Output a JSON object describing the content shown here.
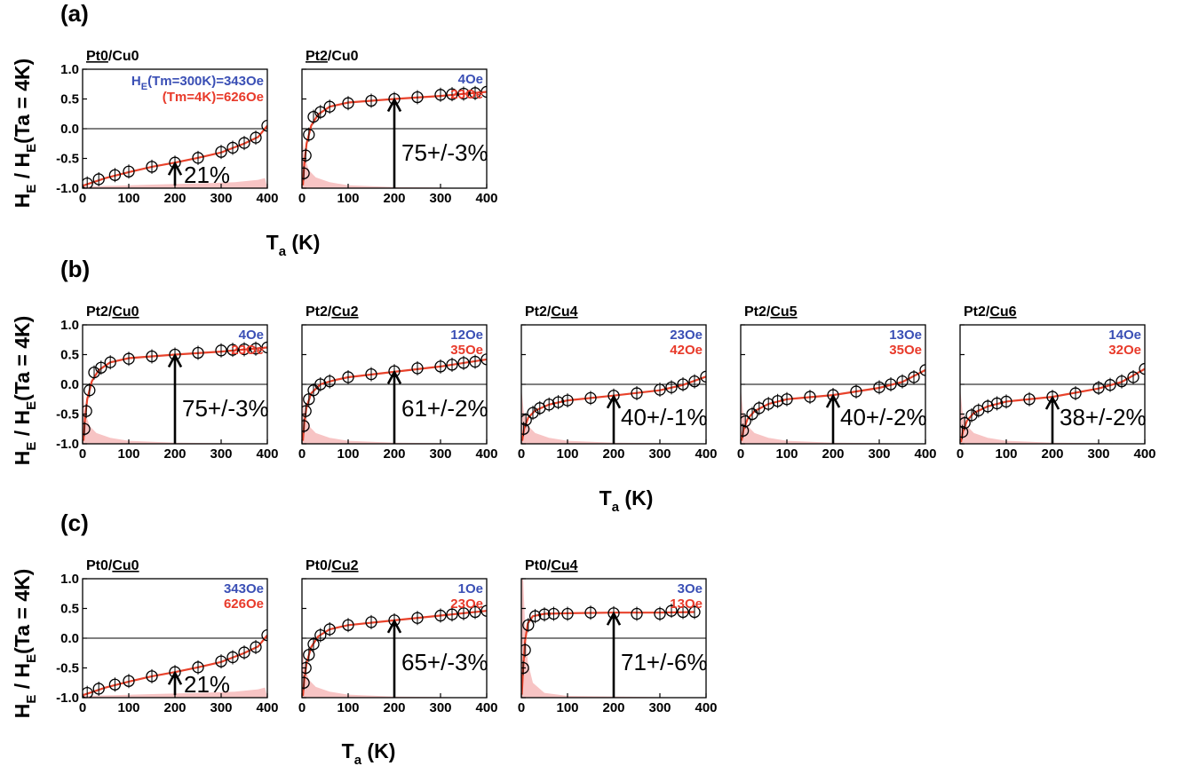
{
  "figure": {
    "y_label_main": "H",
    "y_label_sub": "E",
    "y_label_mid": " / H",
    "y_label_sub2": "E",
    "y_label_tail": "(Ta = 4K)",
    "x_label_main": "T",
    "x_label_sub": "a",
    "x_label_tail": " (K)",
    "colors": {
      "fit": "#e8422b",
      "shade": "#f7c4c4",
      "blue": "#3a4fb5",
      "red": "#e83a2a"
    }
  },
  "chart_data": [
    {
      "type": "scatter",
      "row": "(a)",
      "title_underlined": "Pt0",
      "title_rest": "/Cu0",
      "underline_first": true,
      "xlim": [
        0,
        400
      ],
      "ylim": [
        -1.0,
        1.0
      ],
      "xticks": [
        "0",
        "100",
        "200",
        "300",
        "400"
      ],
      "yticks": [
        "-1.0",
        "-0.5",
        "0.0",
        "0.5",
        "1.0"
      ],
      "x": [
        10,
        35,
        70,
        100,
        150,
        200,
        250,
        300,
        325,
        350,
        375,
        400
      ],
      "y": [
        -0.92,
        -0.85,
        -0.78,
        -0.72,
        -0.64,
        -0.57,
        -0.49,
        -0.39,
        -0.32,
        -0.24,
        -0.15,
        0.05
      ],
      "fit": [
        [
          0,
          -0.96
        ],
        [
          50,
          -0.83
        ],
        [
          100,
          -0.73
        ],
        [
          150,
          -0.64
        ],
        [
          200,
          -0.57
        ],
        [
          250,
          -0.49
        ],
        [
          300,
          -0.4
        ],
        [
          350,
          -0.25
        ],
        [
          380,
          -0.14
        ],
        [
          400,
          0.05
        ]
      ],
      "shade_kind": "tail",
      "arrow_x": 200,
      "arrow_y": -0.57,
      "percent": "21%",
      "label_kind": "small",
      "note_blue": "H_E(Tm=300K)=343Oe",
      "note_red": "(Tm=4K)=626Oe",
      "note_kind": "long"
    },
    {
      "type": "scatter",
      "row": "(a)",
      "title_underlined": "Pt2",
      "title_rest": "/Cu0",
      "underline_first": true,
      "xlim": [
        0,
        400
      ],
      "ylim": [
        -1.0,
        1.0
      ],
      "xticks": [
        "0",
        "100",
        "200",
        "300",
        "400"
      ],
      "yticks": [],
      "x": [
        4,
        8,
        15,
        25,
        40,
        60,
        100,
        150,
        200,
        250,
        300,
        325,
        350,
        375,
        400
      ],
      "y": [
        -0.75,
        -0.45,
        -0.1,
        0.2,
        0.28,
        0.37,
        0.43,
        0.47,
        0.5,
        0.53,
        0.57,
        0.58,
        0.59,
        0.6,
        0.62
      ],
      "fit": [
        [
          2,
          -0.95
        ],
        [
          5,
          -0.6
        ],
        [
          10,
          -0.25
        ],
        [
          20,
          0.05
        ],
        [
          35,
          0.24
        ],
        [
          60,
          0.37
        ],
        [
          100,
          0.44
        ],
        [
          150,
          0.47
        ],
        [
          200,
          0.5
        ],
        [
          300,
          0.55
        ],
        [
          400,
          0.62
        ]
      ],
      "shade_kind": "peak",
      "arrow_x": 200,
      "arrow_y": 0.5,
      "percent": "75+/-3%",
      "label_kind": "big",
      "note_blue": "4Oe",
      "note_red": "23Oe",
      "note_kind": "short"
    },
    {
      "type": "scatter",
      "row": "(b)",
      "title_underlined": "Cu0",
      "title_rest": "Pt2/",
      "underline_first": false,
      "xlim": [
        0,
        400
      ],
      "ylim": [
        -1.0,
        1.0
      ],
      "xticks": [
        "0",
        "100",
        "200",
        "300",
        "400"
      ],
      "yticks": [
        "-1.0",
        "-0.5",
        "0.0",
        "0.5",
        "1.0"
      ],
      "x": [
        4,
        8,
        15,
        25,
        40,
        60,
        100,
        150,
        200,
        250,
        300,
        325,
        350,
        375,
        400
      ],
      "y": [
        -0.75,
        -0.45,
        -0.1,
        0.2,
        0.28,
        0.37,
        0.43,
        0.47,
        0.5,
        0.53,
        0.57,
        0.58,
        0.59,
        0.6,
        0.62
      ],
      "fit": [
        [
          2,
          -0.95
        ],
        [
          5,
          -0.6
        ],
        [
          10,
          -0.25
        ],
        [
          20,
          0.05
        ],
        [
          35,
          0.24
        ],
        [
          60,
          0.37
        ],
        [
          100,
          0.44
        ],
        [
          150,
          0.47
        ],
        [
          200,
          0.5
        ],
        [
          300,
          0.55
        ],
        [
          400,
          0.62
        ]
      ],
      "shade_kind": "peak",
      "arrow_x": 200,
      "arrow_y": 0.5,
      "percent": "75+/-3%",
      "label_kind": "big",
      "note_blue": "4Oe",
      "note_red": "23Oe",
      "note_kind": "short"
    },
    {
      "type": "scatter",
      "row": "(b)",
      "title_underlined": "Cu2",
      "title_rest": "Pt2/",
      "underline_first": false,
      "xlim": [
        0,
        400
      ],
      "ylim": [
        -1.0,
        1.0
      ],
      "xticks": [
        "0",
        "100",
        "200",
        "300",
        "400"
      ],
      "yticks": [],
      "x": [
        4,
        8,
        15,
        25,
        40,
        60,
        100,
        150,
        200,
        250,
        300,
        325,
        350,
        375,
        400
      ],
      "y": [
        -0.7,
        -0.45,
        -0.25,
        -0.1,
        0.0,
        0.05,
        0.12,
        0.17,
        0.22,
        0.27,
        0.3,
        0.33,
        0.36,
        0.38,
        0.42
      ],
      "fit": [
        [
          2,
          -0.95
        ],
        [
          5,
          -0.65
        ],
        [
          10,
          -0.38
        ],
        [
          20,
          -0.15
        ],
        [
          40,
          0.0
        ],
        [
          70,
          0.07
        ],
        [
          100,
          0.12
        ],
        [
          200,
          0.21
        ],
        [
          300,
          0.3
        ],
        [
          400,
          0.42
        ]
      ],
      "shade_kind": "peak",
      "arrow_x": 200,
      "arrow_y": 0.22,
      "percent": "61+/-2%",
      "label_kind": "big",
      "note_blue": "12Oe",
      "note_red": "35Oe",
      "note_kind": "short"
    },
    {
      "type": "scatter",
      "row": "(b)",
      "title_underlined": "Cu4",
      "title_rest": "Pt2/",
      "underline_first": false,
      "xlim": [
        0,
        400
      ],
      "ylim": [
        -1.0,
        1.0
      ],
      "xticks": [
        "0",
        "100",
        "200",
        "300",
        "400"
      ],
      "yticks": [],
      "x": [
        5,
        10,
        25,
        40,
        60,
        80,
        100,
        150,
        200,
        250,
        300,
        325,
        350,
        375,
        400
      ],
      "y": [
        -0.75,
        -0.6,
        -0.48,
        -0.4,
        -0.34,
        -0.3,
        -0.27,
        -0.23,
        -0.19,
        -0.15,
        -0.09,
        -0.05,
        0.0,
        0.05,
        0.13
      ],
      "fit": [
        [
          2,
          -0.95
        ],
        [
          6,
          -0.75
        ],
        [
          15,
          -0.56
        ],
        [
          30,
          -0.44
        ],
        [
          60,
          -0.34
        ],
        [
          100,
          -0.27
        ],
        [
          200,
          -0.19
        ],
        [
          300,
          -0.1
        ],
        [
          350,
          -0.01
        ],
        [
          400,
          0.13
        ]
      ],
      "shade_kind": "peak",
      "arrow_x": 200,
      "arrow_y": -0.19,
      "percent": "40+/-1%",
      "label_kind": "big",
      "note_blue": "23Oe",
      "note_red": "42Oe",
      "note_kind": "short"
    },
    {
      "type": "scatter",
      "row": "(b)",
      "title_underlined": "Cu5",
      "title_rest": "Pt2/",
      "underline_first": false,
      "xlim": [
        0,
        400
      ],
      "ylim": [
        -1.0,
        1.0
      ],
      "xticks": [
        "0",
        "100",
        "200",
        "300",
        "400"
      ],
      "yticks": [],
      "x": [
        5,
        10,
        25,
        40,
        60,
        80,
        100,
        150,
        200,
        250,
        300,
        325,
        350,
        375,
        400
      ],
      "y": [
        -0.78,
        -0.62,
        -0.5,
        -0.4,
        -0.33,
        -0.28,
        -0.25,
        -0.21,
        -0.18,
        -0.12,
        -0.05,
        0.0,
        0.05,
        0.12,
        0.24
      ],
      "fit": [
        [
          2,
          -0.95
        ],
        [
          6,
          -0.77
        ],
        [
          15,
          -0.58
        ],
        [
          30,
          -0.45
        ],
        [
          60,
          -0.33
        ],
        [
          100,
          -0.25
        ],
        [
          200,
          -0.18
        ],
        [
          300,
          -0.06
        ],
        [
          350,
          0.04
        ],
        [
          400,
          0.24
        ]
      ],
      "shade_kind": "peak",
      "arrow_x": 200,
      "arrow_y": -0.18,
      "percent": "40+/-2%",
      "label_kind": "big",
      "note_blue": "13Oe",
      "note_red": "35Oe",
      "note_kind": "short"
    },
    {
      "type": "scatter",
      "row": "(b)",
      "title_underlined": "Cu6",
      "title_rest": "Pt2/",
      "underline_first": false,
      "xlim": [
        0,
        400
      ],
      "ylim": [
        -1.0,
        1.0
      ],
      "xticks": [
        "0",
        "100",
        "200",
        "300",
        "400"
      ],
      "yticks": [],
      "x": [
        5,
        10,
        25,
        40,
        60,
        80,
        100,
        150,
        200,
        250,
        300,
        325,
        350,
        375,
        400
      ],
      "y": [
        -0.8,
        -0.65,
        -0.52,
        -0.44,
        -0.37,
        -0.32,
        -0.29,
        -0.25,
        -0.21,
        -0.15,
        -0.06,
        -0.01,
        0.05,
        0.12,
        0.26
      ],
      "fit": [
        [
          2,
          -0.97
        ],
        [
          6,
          -0.8
        ],
        [
          15,
          -0.61
        ],
        [
          30,
          -0.48
        ],
        [
          60,
          -0.37
        ],
        [
          100,
          -0.29
        ],
        [
          200,
          -0.21
        ],
        [
          300,
          -0.07
        ],
        [
          350,
          0.04
        ],
        [
          400,
          0.26
        ]
      ],
      "shade_kind": "peak",
      "arrow_x": 200,
      "arrow_y": -0.21,
      "percent": "38+/-2%",
      "label_kind": "big",
      "note_blue": "14Oe",
      "note_red": "32Oe",
      "note_kind": "short"
    },
    {
      "type": "scatter",
      "row": "(c)",
      "title_underlined": "Cu0",
      "title_rest": "Pt0/",
      "underline_first": false,
      "xlim": [
        0,
        400
      ],
      "ylim": [
        -1.0,
        1.0
      ],
      "xticks": [
        "0",
        "100",
        "200",
        "300",
        "400"
      ],
      "yticks": [
        "-1.0",
        "-0.5",
        "0.0",
        "0.5",
        "1.0"
      ],
      "x": [
        10,
        35,
        70,
        100,
        150,
        200,
        250,
        300,
        325,
        350,
        375,
        400
      ],
      "y": [
        -0.92,
        -0.85,
        -0.78,
        -0.72,
        -0.64,
        -0.57,
        -0.49,
        -0.39,
        -0.32,
        -0.24,
        -0.15,
        0.05
      ],
      "fit": [
        [
          0,
          -0.96
        ],
        [
          50,
          -0.83
        ],
        [
          100,
          -0.73
        ],
        [
          150,
          -0.64
        ],
        [
          200,
          -0.57
        ],
        [
          250,
          -0.49
        ],
        [
          300,
          -0.4
        ],
        [
          350,
          -0.25
        ],
        [
          380,
          -0.14
        ],
        [
          400,
          0.05
        ]
      ],
      "shade_kind": "tail",
      "arrow_x": 200,
      "arrow_y": -0.57,
      "percent": "21%",
      "label_kind": "small",
      "note_blue": "343Oe",
      "note_red": "626Oe",
      "note_kind": "short"
    },
    {
      "type": "scatter",
      "row": "(c)",
      "title_underlined": "Cu2",
      "title_rest": "Pt0/",
      "underline_first": false,
      "xlim": [
        0,
        400
      ],
      "ylim": [
        -1.0,
        1.0
      ],
      "xticks": [
        "0",
        "100",
        "200",
        "300",
        "400"
      ],
      "yticks": [],
      "x": [
        4,
        8,
        15,
        25,
        40,
        60,
        100,
        150,
        200,
        250,
        300,
        325,
        350,
        375,
        400
      ],
      "y": [
        -0.75,
        -0.5,
        -0.28,
        -0.1,
        0.05,
        0.15,
        0.22,
        0.27,
        0.3,
        0.34,
        0.38,
        0.4,
        0.42,
        0.44,
        0.46
      ],
      "fit": [
        [
          2,
          -0.97
        ],
        [
          5,
          -0.7
        ],
        [
          10,
          -0.42
        ],
        [
          20,
          -0.15
        ],
        [
          35,
          0.03
        ],
        [
          60,
          0.15
        ],
        [
          100,
          0.22
        ],
        [
          200,
          0.3
        ],
        [
          300,
          0.38
        ],
        [
          400,
          0.46
        ]
      ],
      "shade_kind": "peak",
      "arrow_x": 200,
      "arrow_y": 0.3,
      "percent": "65+/-3%",
      "label_kind": "big",
      "note_blue": "1Oe",
      "note_red": "23Oe",
      "note_kind": "short"
    },
    {
      "type": "scatter",
      "row": "(c)",
      "title_underlined": "Cu4",
      "title_rest": "Pt0/",
      "underline_first": false,
      "xlim": [
        0,
        400
      ],
      "ylim": [
        -1.0,
        1.0
      ],
      "xticks": [
        "0",
        "100",
        "200",
        "300",
        "400"
      ],
      "yticks": [],
      "x": [
        4,
        8,
        15,
        30,
        50,
        70,
        100,
        150,
        200,
        250,
        300,
        325,
        350,
        375
      ],
      "y": [
        -0.5,
        -0.2,
        0.22,
        0.37,
        0.4,
        0.41,
        0.41,
        0.43,
        0.42,
        0.41,
        0.41,
        0.46,
        0.44,
        0.44
      ],
      "fit": [
        [
          1,
          -0.95
        ],
        [
          4,
          -0.5
        ],
        [
          8,
          -0.05
        ],
        [
          14,
          0.25
        ],
        [
          25,
          0.37
        ],
        [
          50,
          0.41
        ],
        [
          100,
          0.42
        ],
        [
          200,
          0.43
        ],
        [
          300,
          0.43
        ],
        [
          375,
          0.44
        ]
      ],
      "shade_kind": "spike",
      "arrow_x": 200,
      "arrow_y": 0.43,
      "percent": "71+/-6%",
      "label_kind": "big",
      "note_blue": "3Oe",
      "note_red": "13Oe",
      "note_kind": "short"
    }
  ]
}
